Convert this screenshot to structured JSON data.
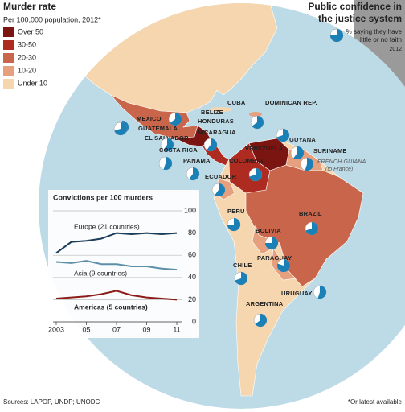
{
  "header": {
    "title": "Murder rate",
    "subtitle": "Per 100,000 population, 2012*",
    "right_title_lines": [
      "Public confidence in",
      "the justice system"
    ],
    "pie_note_lines": [
      "% saying they have",
      "little or no faith"
    ],
    "pie_year": "2012"
  },
  "legend": [
    {
      "label": "Over 50",
      "color": "#7a1512"
    },
    {
      "label": "30-50",
      "color": "#ad2b20"
    },
    {
      "label": "20-30",
      "color": "#c8654a"
    },
    {
      "label": "10-20",
      "color": "#e6a07e"
    },
    {
      "label": "Under 10",
      "color": "#f6d6ae"
    }
  ],
  "map": {
    "countries": [
      {
        "label": "MEXICO",
        "no_faith": 70
      },
      {
        "label": "CUBA"
      },
      {
        "label": "BELIZE"
      },
      {
        "label": "GUATEMALA",
        "no_faith": 65
      },
      {
        "label": "HONDURAS",
        "no_faith": 70
      },
      {
        "label": "EL SALVADOR",
        "no_faith": 60
      },
      {
        "label": "NICARAGUA",
        "no_faith": 60
      },
      {
        "label": "COSTA RICA",
        "no_faith": 55
      },
      {
        "label": "PANAMA",
        "no_faith": 60
      },
      {
        "label": "DOMINICAN REP.",
        "no_faith": 65
      },
      {
        "label": "VENEZUELA",
        "no_faith": 70
      },
      {
        "label": "COLOMBIA",
        "no_faith": 70
      },
      {
        "label": "GUYANA",
        "no_faith": 60
      },
      {
        "label": "SURINAME",
        "no_faith": 55
      },
      {
        "label": "FRENCH GUIANA",
        "note": "(to France)"
      },
      {
        "label": "ECUADOR",
        "no_faith": 60
      },
      {
        "label": "PERU",
        "no_faith": 75
      },
      {
        "label": "BRAZIL",
        "no_faith": 70
      },
      {
        "label": "BOLIVIA",
        "no_faith": 75
      },
      {
        "label": "PARAGUAY",
        "no_faith": 80
      },
      {
        "label": "CHILE",
        "no_faith": 70
      },
      {
        "label": "URUGUAY",
        "no_faith": 55
      },
      {
        "label": "ARGENTINA",
        "no_faith": 65
      }
    ]
  },
  "chart_data": {
    "type": "line",
    "title": "Convictions per 100 murders",
    "x": [
      2003,
      2004,
      2005,
      2006,
      2007,
      2008,
      2009,
      2010,
      2011
    ],
    "xlim": [
      2003,
      2011
    ],
    "xticks": [
      2003,
      {
        "value": 2005,
        "label": "05"
      },
      {
        "value": 2007,
        "label": "07"
      },
      {
        "value": 2009,
        "label": "09"
      },
      {
        "value": 2011,
        "label": "11"
      }
    ],
    "ylim": [
      0,
      100
    ],
    "yticks": [
      0,
      20,
      40,
      60,
      80,
      100
    ],
    "grid": true,
    "series": [
      {
        "name": "Europe (21 countries)",
        "color": "#1b3d5a",
        "values": [
          62,
          72,
          73,
          75,
          80,
          79,
          80,
          79,
          80
        ]
      },
      {
        "name": "Asia (9 countries)",
        "color": "#5d8fa9",
        "values": [
          54,
          53,
          55,
          52,
          52,
          50,
          50,
          48,
          47
        ]
      },
      {
        "name": "Americas (5 countries)",
        "color": "#8c1c18",
        "values": [
          21,
          22,
          23,
          25,
          28,
          24,
          22,
          21,
          20
        ]
      }
    ]
  },
  "footer": {
    "sources": "Sources: LAPOP, UNDP; UNODC",
    "footnote": "*Or latest available"
  }
}
